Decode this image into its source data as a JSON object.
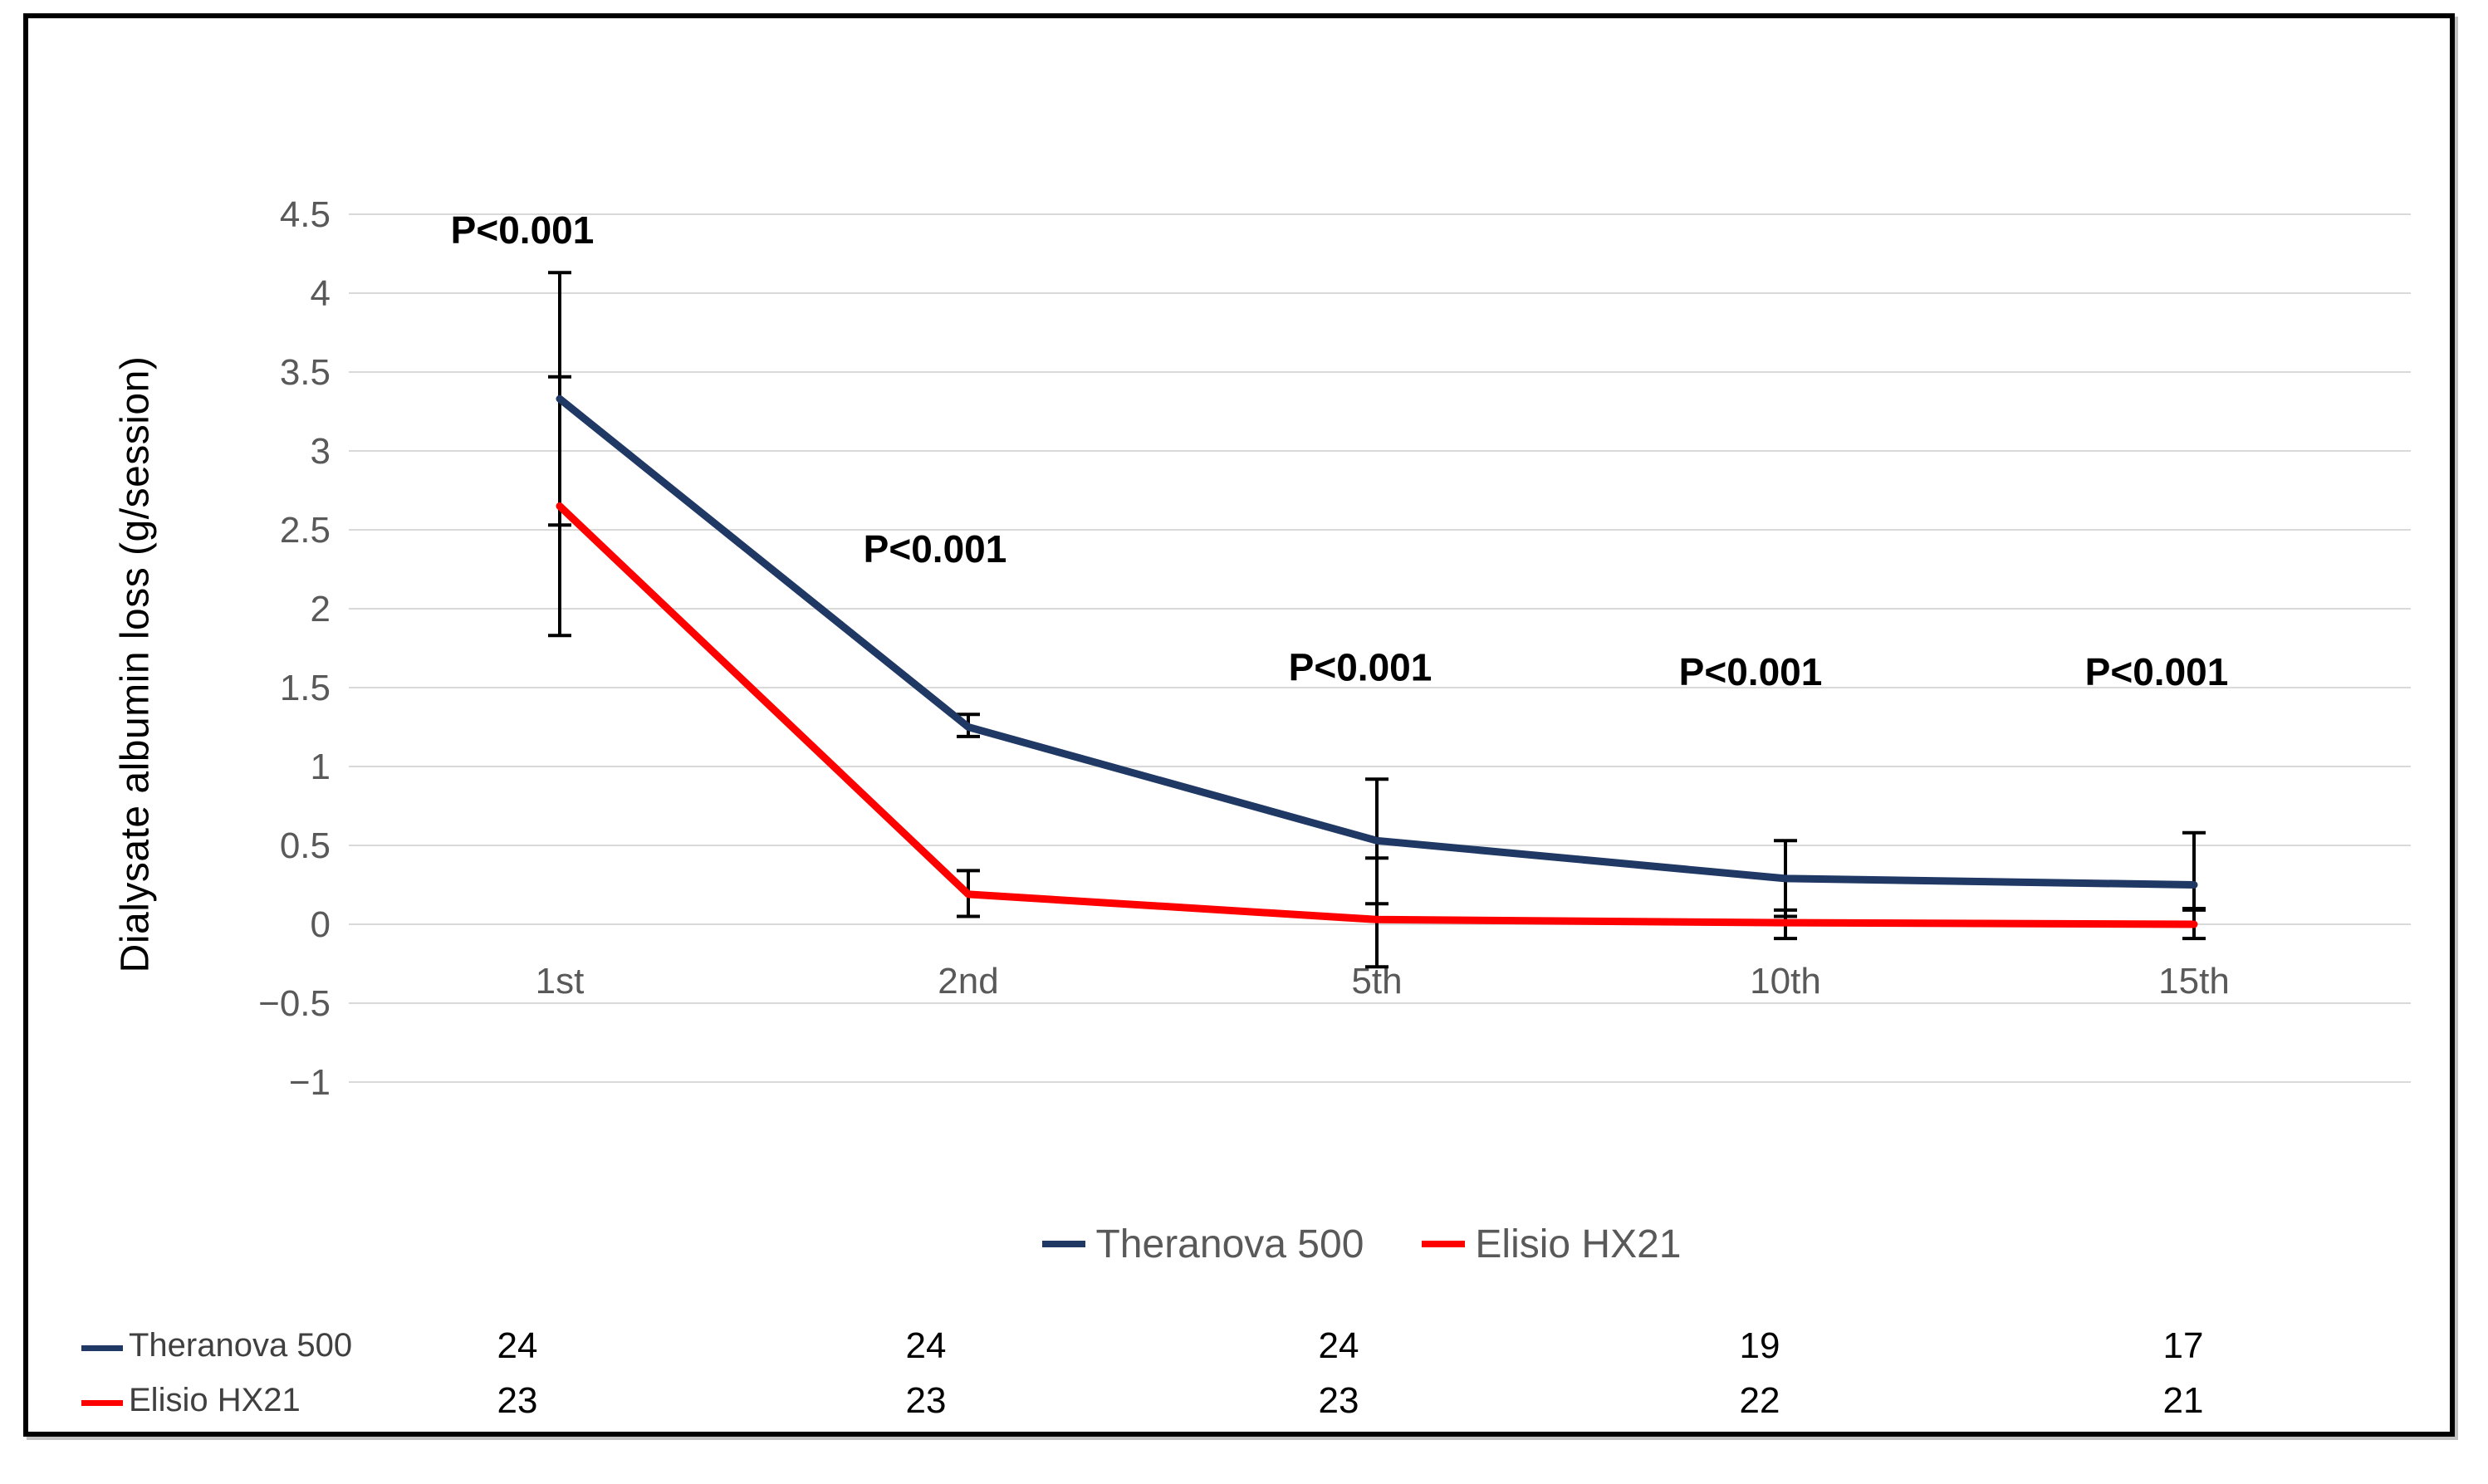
{
  "figure": {
    "background_color": "#ffffff",
    "border_color": "#000000",
    "gridline_color": "#d9d9d9",
    "tick_label_color": "#595959",
    "annotation_color": "#000000"
  },
  "chart_data": {
    "type": "line",
    "title": "",
    "xlabel": "",
    "ylabel": "Dialysate albumin loss (g/session)",
    "categories": [
      "1st",
      "2nd",
      "5th",
      "10th",
      "15th"
    ],
    "ylim": [
      -1,
      4.5
    ],
    "grid": "horizontal",
    "legend_position": "bottom-center",
    "y_ticks": [
      {
        "label": "4.5",
        "value": 4.5
      },
      {
        "label": "4",
        "value": 4
      },
      {
        "label": "3.5",
        "value": 3.5
      },
      {
        "label": "3",
        "value": 3
      },
      {
        "label": "2.5",
        "value": 2.5
      },
      {
        "label": "2",
        "value": 2
      },
      {
        "label": "1.5",
        "value": 1.5
      },
      {
        "label": "1",
        "value": 1
      },
      {
        "label": "0.5",
        "value": 0.5
      },
      {
        "label": "0",
        "value": 0
      },
      {
        "label": "−0.5",
        "value": -0.5
      },
      {
        "label": "−1",
        "value": -1
      }
    ],
    "series": [
      {
        "name": "Theranova 500",
        "color": "#1f3864",
        "values": [
          3.33,
          1.25,
          0.53,
          0.29,
          0.25
        ],
        "error_low": [
          2.53,
          1.19,
          0.13,
          0.05,
          0.1
        ],
        "error_high": [
          4.13,
          1.33,
          0.92,
          0.53,
          0.58
        ],
        "session_counts": [
          24,
          24,
          24,
          19,
          17
        ]
      },
      {
        "name": "Elisio HX21",
        "color": "#ff0000",
        "values": [
          2.65,
          0.19,
          0.03,
          0.01,
          0.0
        ],
        "error_low": [
          1.83,
          0.05,
          -0.27,
          -0.09,
          -0.09
        ],
        "error_high": [
          3.47,
          0.34,
          0.42,
          0.09,
          0.09
        ],
        "session_counts": [
          23,
          23,
          23,
          22,
          21
        ]
      }
    ],
    "annotations": [
      {
        "text": "P<0.001",
        "x_index": 0,
        "x_offset": -45,
        "y_value": 4.4
      },
      {
        "text": "P<0.001",
        "x_index": 1,
        "x_offset": -40,
        "y_value": 2.38
      },
      {
        "text": "P<0.001",
        "x_index": 2,
        "x_offset": -20,
        "y_value": 1.63
      },
      {
        "text": "P<0.001",
        "x_index": 3,
        "x_offset": -42,
        "y_value": 1.6
      },
      {
        "text": "P<0.001",
        "x_index": 4,
        "x_offset": -45,
        "y_value": 1.6
      }
    ]
  }
}
